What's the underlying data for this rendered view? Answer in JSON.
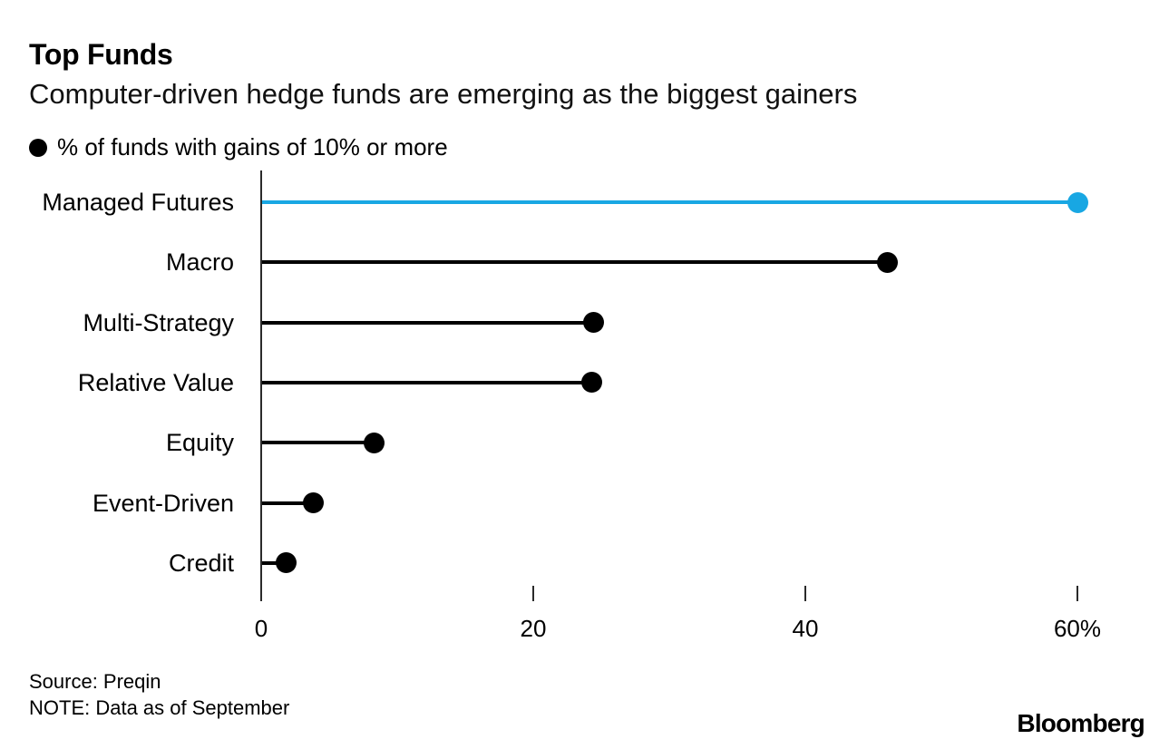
{
  "header": {
    "title": "Top Funds",
    "subtitle": "Computer-driven hedge funds are emerging as the biggest gainers"
  },
  "legend": {
    "label": "% of funds with gains of 10% or more",
    "marker": "black-dot",
    "marker_color": "#000000"
  },
  "chart_data": {
    "type": "bar",
    "style": "lollipop",
    "orientation": "horizontal",
    "title": "Top Funds",
    "subtitle": "Computer-driven hedge funds are emerging as the biggest gainers",
    "legend_label": "% of funds with gains of 10% or more",
    "categories": [
      "Managed Futures",
      "Macro",
      "Multi-Strategy",
      "Relative Value",
      "Equity",
      "Event-Driven",
      "Credit"
    ],
    "values": [
      60,
      46,
      24.4,
      24.3,
      8.3,
      3.8,
      1.8
    ],
    "unit": "%",
    "default_color": "#000000",
    "highlight_category": "Managed Futures",
    "highlight_color": "#18a7e3",
    "axis_color": "#2a2a2a",
    "xlim": [
      0,
      66.5
    ],
    "x_ticks": [
      {
        "value": 0,
        "label": "0"
      },
      {
        "value": 20,
        "label": "20"
      },
      {
        "value": 40,
        "label": "40"
      },
      {
        "value": 60,
        "label": "60%"
      }
    ],
    "grid": false,
    "legend_position": "top-left"
  },
  "footer": {
    "source": "Source: Preqin",
    "note": "NOTE: Data as of September",
    "logo": "Bloomberg"
  }
}
